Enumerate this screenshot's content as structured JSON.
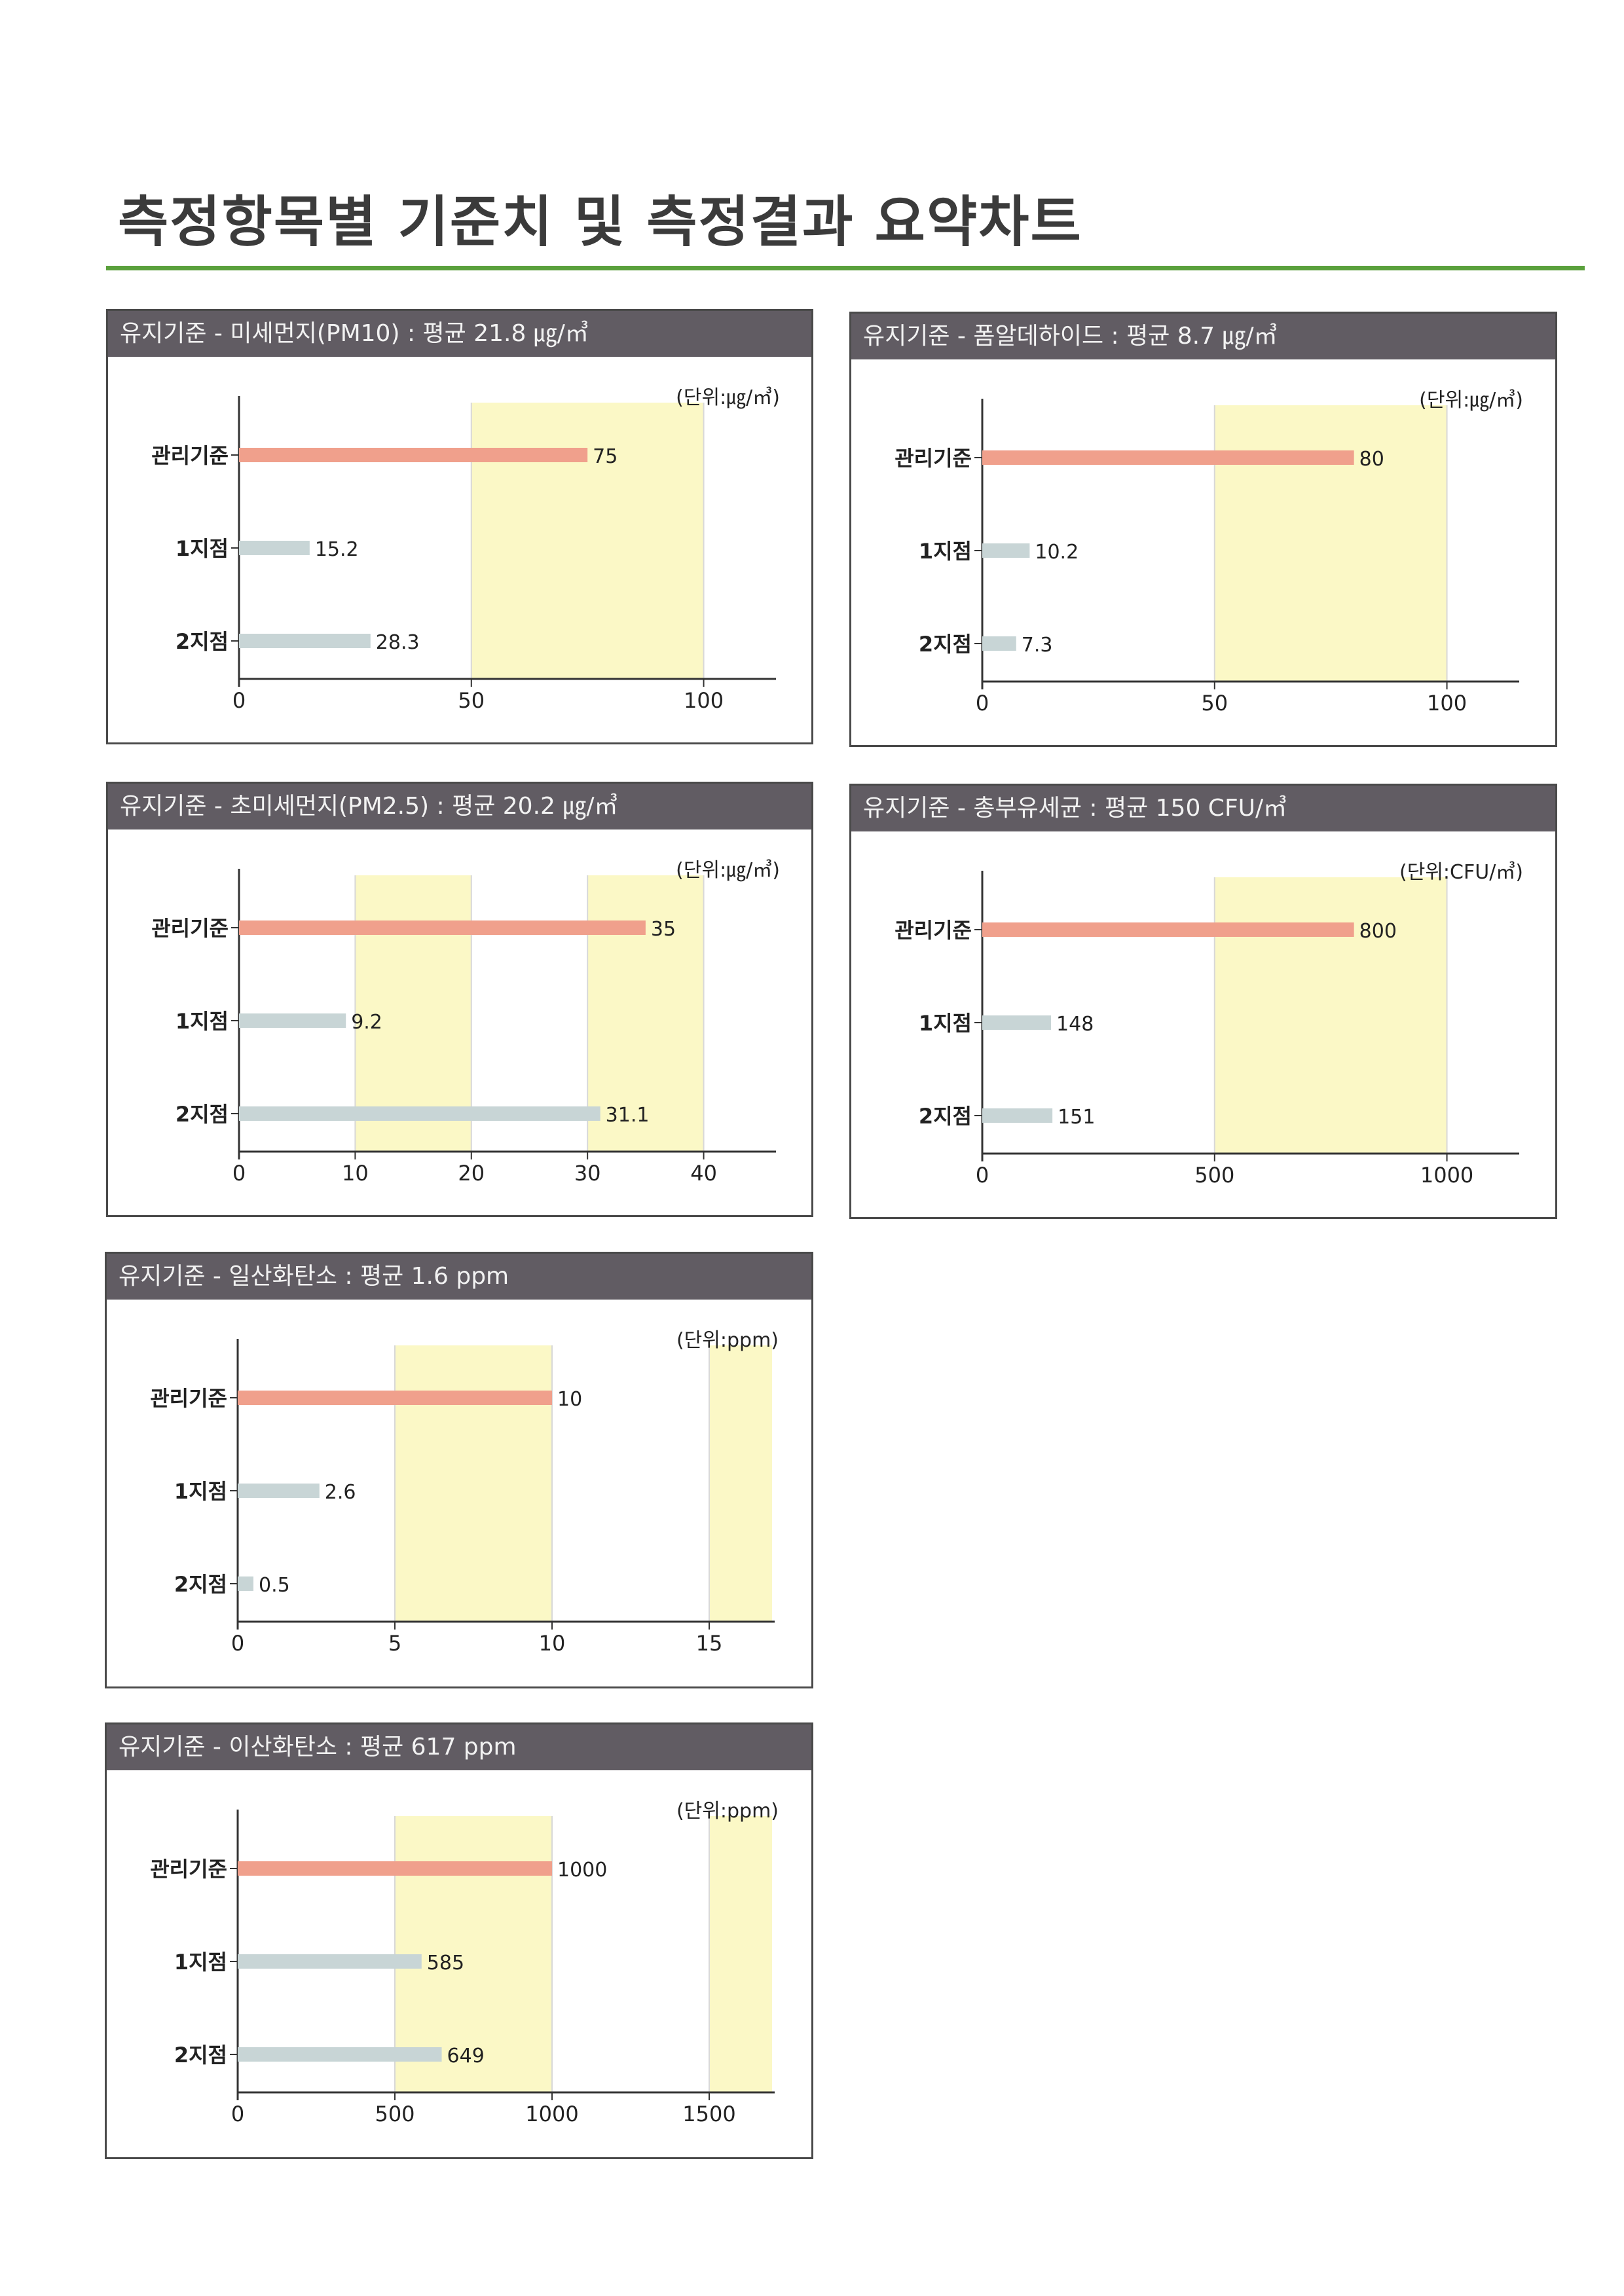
{
  "page_title": "측정항목별 기준치 및 측정결과 요약차트",
  "colors": {
    "accent_rule": "#5aa03c",
    "header_bg": "#615c63",
    "standard_bar": "#f0a08c",
    "site_bar": "#c8d5d6",
    "band_fill": "#fbf8c6"
  },
  "chart_data": [
    {
      "type": "bar",
      "orientation": "horizontal",
      "title": "유지기준 - 미세먼지(PM10) : 평균 21.8 ㎍/㎥",
      "unit_label": "(단위:㎍/㎥)",
      "categories": [
        "관리기준",
        "1지점",
        "2지점"
      ],
      "values": [
        75,
        15.2,
        28.3
      ],
      "value_labels": [
        "75",
        "15.2",
        "28.3"
      ],
      "xlim": [
        0,
        115
      ],
      "xticks": [
        0,
        50,
        100
      ],
      "highlight_bands": [
        [
          50,
          100
        ]
      ],
      "grid": false
    },
    {
      "type": "bar",
      "orientation": "horizontal",
      "title": "유지기준 - 폼알데하이드 : 평균 8.7 ㎍/㎥",
      "unit_label": "(단위:㎍/㎥)",
      "categories": [
        "관리기준",
        "1지점",
        "2지점"
      ],
      "values": [
        80,
        10.2,
        7.3
      ],
      "value_labels": [
        "80",
        "10.2",
        "7.3"
      ],
      "xlim": [
        0,
        115
      ],
      "xticks": [
        0,
        50,
        100
      ],
      "highlight_bands": [
        [
          50,
          100
        ]
      ],
      "grid": false
    },
    {
      "type": "bar",
      "orientation": "horizontal",
      "title": "유지기준 - 초미세먼지(PM2.5) : 평균 20.2 ㎍/㎥",
      "unit_label": "(단위:㎍/㎥)",
      "categories": [
        "관리기준",
        "1지점",
        "2지점"
      ],
      "values": [
        35,
        9.2,
        31.1
      ],
      "value_labels": [
        "35",
        "9.2",
        "31.1"
      ],
      "xlim": [
        0,
        46
      ],
      "xticks": [
        0,
        10,
        20,
        30,
        40
      ],
      "highlight_bands": [
        [
          10,
          20
        ],
        [
          30,
          40
        ]
      ],
      "grid": false
    },
    {
      "type": "bar",
      "orientation": "horizontal",
      "title": "유지기준 - 총부유세균 : 평균 150 CFU/㎥",
      "unit_label": "(단위:CFU/㎥)",
      "categories": [
        "관리기준",
        "1지점",
        "2지점"
      ],
      "values": [
        800,
        148,
        151
      ],
      "value_labels": [
        "800",
        "148",
        "151"
      ],
      "xlim": [
        0,
        1150
      ],
      "xticks": [
        0,
        500,
        1000
      ],
      "highlight_bands": [
        [
          500,
          1000
        ]
      ],
      "grid": false
    },
    {
      "type": "bar",
      "orientation": "horizontal",
      "title": "유지기준 - 일산화탄소 : 평균 1.6 ppm",
      "unit_label": "(단위:ppm)",
      "categories": [
        "관리기준",
        "1지점",
        "2지점"
      ],
      "values": [
        10,
        2.6,
        0.5
      ],
      "value_labels": [
        "10",
        "2.6",
        "0.5"
      ],
      "xlim": [
        0,
        17
      ],
      "xticks": [
        0,
        5,
        10,
        15
      ],
      "highlight_bands": [
        [
          5,
          10
        ],
        [
          15,
          17
        ]
      ],
      "grid": false
    },
    {
      "type": "bar",
      "orientation": "horizontal",
      "title": "유지기준 - 이산화탄소 : 평균 617 ppm",
      "unit_label": "(단위:ppm)",
      "categories": [
        "관리기준",
        "1지점",
        "2지점"
      ],
      "values": [
        1000,
        585,
        649
      ],
      "value_labels": [
        "1000",
        "585",
        "649"
      ],
      "xlim": [
        0,
        1700
      ],
      "xticks": [
        0,
        500,
        1000,
        1500
      ],
      "highlight_bands": [
        [
          500,
          1000
        ],
        [
          1500,
          1700
        ]
      ],
      "grid": false
    }
  ]
}
